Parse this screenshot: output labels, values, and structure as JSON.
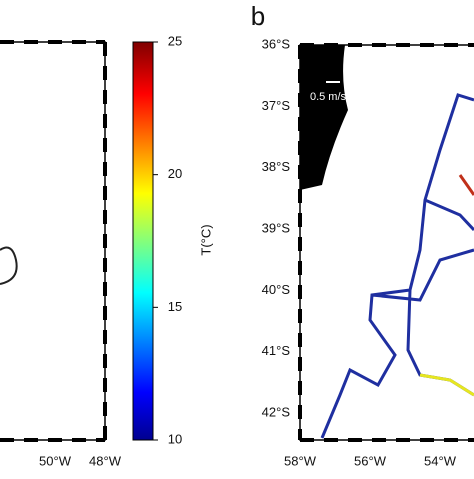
{
  "left_panel": {
    "x_tick_labels": [
      "50°W",
      "48°W"
    ]
  },
  "colorbar": {
    "label": "T(°C)",
    "lim": [
      10,
      25
    ],
    "ticks": [
      10,
      15,
      20,
      25
    ]
  },
  "right_panel": {
    "label": "b",
    "scale_label": "0.5 m/s",
    "y_tick_labels": [
      "36°S",
      "37°S",
      "38°S",
      "39°S",
      "40°S",
      "41°S",
      "42°S"
    ],
    "x_tick_labels": [
      "58°W",
      "56°W",
      "54°W"
    ]
  }
}
